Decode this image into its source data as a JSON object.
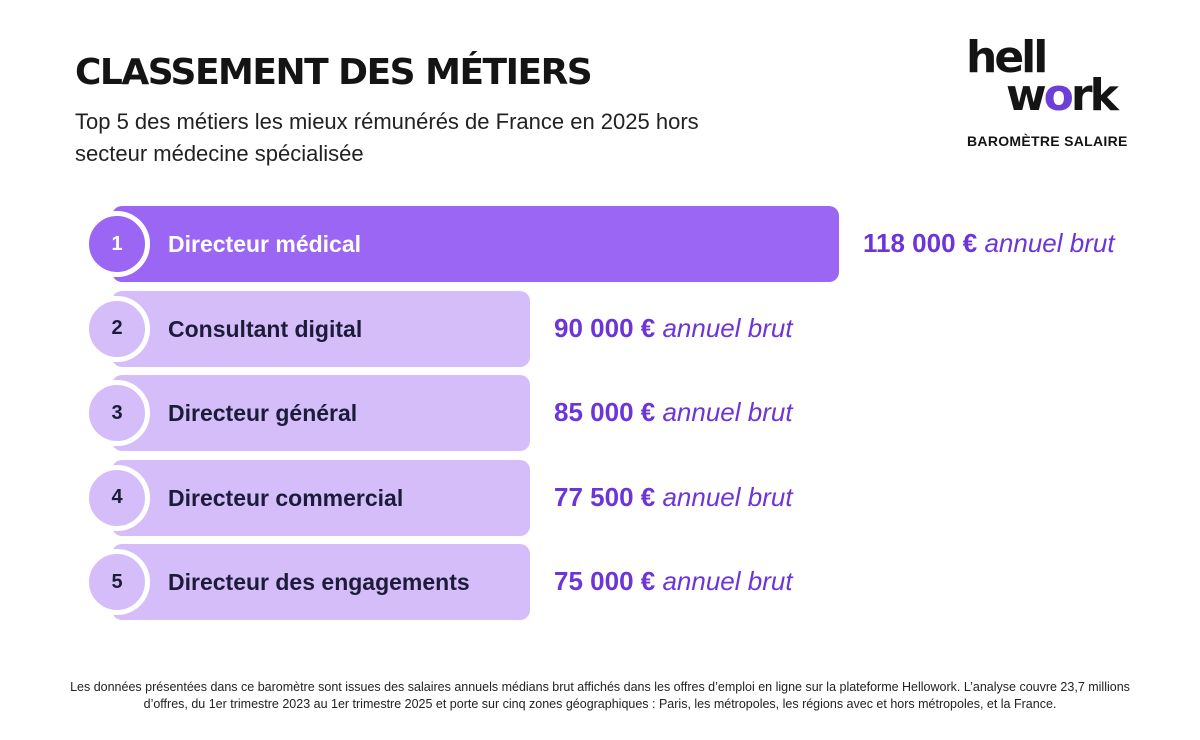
{
  "header": {
    "title": "CLASSEMENT DES MÉTIERS",
    "subtitle": "Top 5 des métiers les mieux rémunérés de France en 2025 hors secteur médecine spécialisée"
  },
  "brand": {
    "logo_line1": "hell",
    "logo_line2_a": "w",
    "logo_line2_o": "o",
    "logo_line2_b": "rk",
    "tagline": "BAROMÈTRE SALAIRE"
  },
  "colors": {
    "bar_top": "#9a66f3",
    "bar_rest": "#d5bdfa",
    "rank_top": "#9a66f3",
    "rank_rest": "#d5bdfa",
    "rank_text_top": "#ffffff",
    "rank_text_rest": "#1c1c3a",
    "value": "#6d35d8"
  },
  "chart_data": {
    "type": "bar",
    "orientation": "horizontal",
    "title": "CLASSEMENT DES MÉTIERS",
    "unit_label": "annuel brut",
    "currency": "€",
    "categories": [
      "Directeur médical",
      "Consultant digital",
      "Directeur général",
      "Directeur commercial",
      "Directeur des engagements"
    ],
    "ranks": [
      "1",
      "2",
      "3",
      "4",
      "5"
    ],
    "values": [
      118000,
      90000,
      85000,
      77500,
      75000
    ],
    "value_labels": [
      "118 000 €",
      "90 000 €",
      "85 000 €",
      "77 500 €",
      "75 000 €"
    ]
  },
  "footnote": "Les données présentées dans ce baromètre sont issues des salaires annuels médians brut affichés dans les offres d’emploi en ligne sur la plateforme Hellowork. L’analyse couvre 23,7 millions d’offres, du 1er trimestre 2023 au 1er trimestre 2025 et porte sur cinq zones géographiques : Paris, les métropoles, les régions avec et hors métropoles, et la France."
}
